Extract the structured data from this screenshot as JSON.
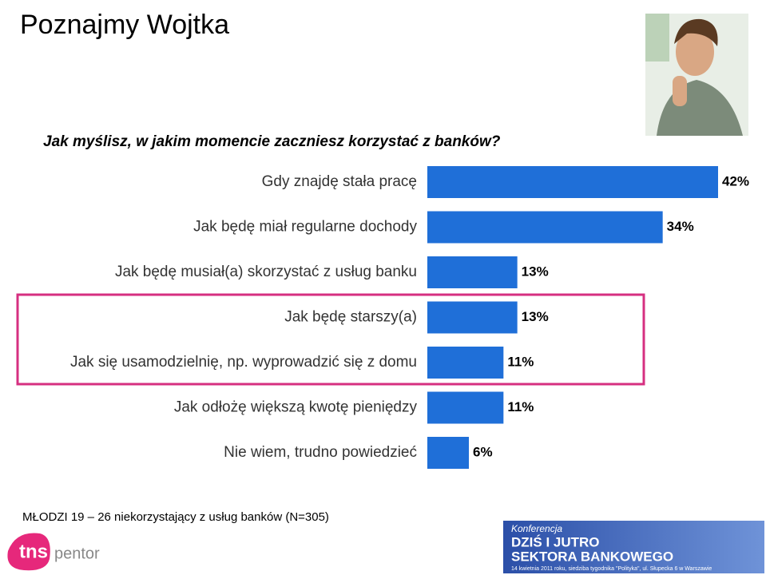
{
  "chart_data": {
    "type": "bar",
    "orientation": "horizontal",
    "title": "Poznajmy Wojtka",
    "subtitle": "Jak myślisz, w jakim momencie zaczniesz korzystać z banków?",
    "categories": [
      "Gdy znajdę stała pracę",
      "Jak będę miał regularne dochody",
      "Jak będę musiał(a) skorzystać z usług banku",
      "Jak będę starszy(a)",
      "Jak się usamodzielnię, np. wyprowadzić się z domu",
      "Jak odłożę większą kwotę pieniędzy",
      "Nie wiem, trudno powiedzieć"
    ],
    "values": [
      42,
      34,
      13,
      13,
      11,
      11,
      6
    ],
    "value_labels": [
      "42%",
      "34%",
      "13%",
      "13%",
      "11%",
      "11%",
      "6%"
    ],
    "color": "#1f6fd8",
    "note": "MŁODZI 19 – 26 niekorzystający z usług banków (N=305)"
  },
  "branding": {
    "logo": "tns",
    "logo_sub": "pentor",
    "banner": [
      "Konferencja",
      "DZIŚ I JUTRO",
      "SEKTORA BANKOWEGO",
      "14 kwietnia 2011 roku, siedziba tygodnika \"Polityka\", ul. Słupecka 6 w Warszawie"
    ]
  }
}
